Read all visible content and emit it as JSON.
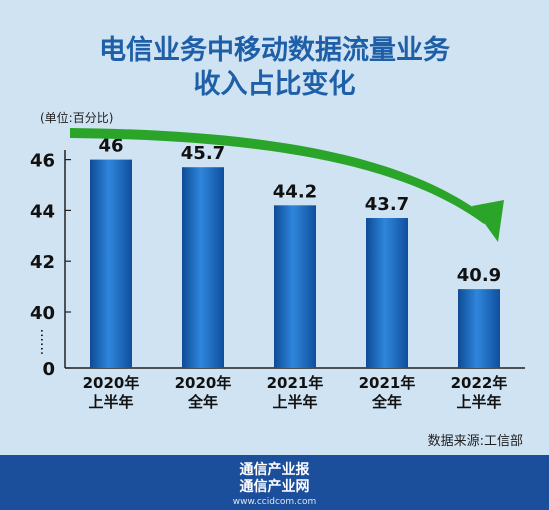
{
  "title_lines": [
    "电信业务中移动数据流量业务",
    "收入占比变化"
  ],
  "unit": "(单位:百分比)",
  "source": "数据来源:工信部",
  "footer": {
    "line1": "通信产业报",
    "line2": "通信产业网",
    "url": "www.ccidcom.com"
  },
  "colors": {
    "title": "#1f5fa8",
    "bar": "#1a63b8",
    "arrow": "#2aa52a",
    "footer": "#1b4f9c",
    "background": "#cfe3f3"
  },
  "chart_data": {
    "type": "bar",
    "categories": [
      [
        "2020年",
        "上半年"
      ],
      [
        "2020年",
        "全年"
      ],
      [
        "2021年",
        "上半年"
      ],
      [
        "2021年",
        "全年"
      ],
      [
        "2022年",
        "上半年"
      ]
    ],
    "values": [
      46,
      45.7,
      44.2,
      43.7,
      40.9
    ],
    "value_labels": [
      "46",
      "45.7",
      "44.2",
      "43.7",
      "40.9"
    ],
    "y_axis": {
      "broken": true,
      "ticks": [
        0,
        40,
        42,
        44,
        46
      ],
      "tick_labels": [
        "0",
        "40",
        "42",
        "44",
        "46"
      ],
      "break_marker": "......"
    },
    "annotation": "downward trend arrow",
    "grid": false,
    "legend": null
  }
}
